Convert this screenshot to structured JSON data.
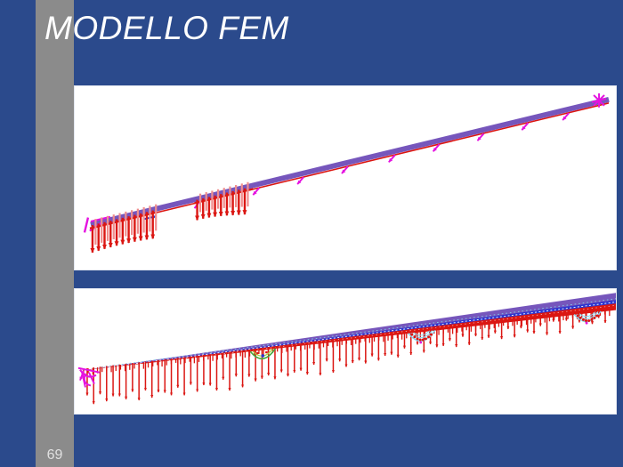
{
  "slide": {
    "title": "MODELLO FEM",
    "page_number": "69"
  },
  "theme": {
    "background": "#2B4A8C",
    "sidebar_bar": "#8B8B8B",
    "panel": "#FFFFFF",
    "title_text": "#FFFFFF",
    "page_number_text": "#E0E0E0",
    "model_purple": "#7656BC",
    "model_magenta": "#E512E0",
    "model_red": "#DB1612",
    "model_light_red": "#F08E8E",
    "model_blue": "#2B35D0",
    "model_cyan": "#7FD4F0",
    "model_green": "#3FA83C"
  }
}
